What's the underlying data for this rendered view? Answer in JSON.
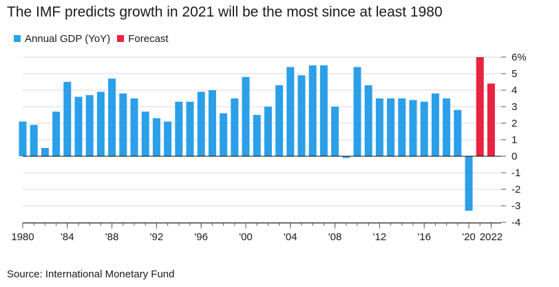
{
  "title": "The IMF predicts growth in 2021 will be the most since at least 1980",
  "source": "Source: International Monetary Fund",
  "colors": {
    "actual": "#2b9fe8",
    "forecast": "#e8233f",
    "grid": "#d9d9d9",
    "axis": "#000000"
  },
  "chart_data": {
    "type": "bar",
    "title": "The IMF predicts growth in 2021 will be the most since at least 1980",
    "xlabel": "",
    "ylabel": "",
    "ylim": [
      -4,
      6
    ],
    "y_ticks": [
      "-4",
      "-3",
      "-2",
      "-1",
      "0",
      "1",
      "2",
      "3",
      "4",
      "5",
      "6%"
    ],
    "x_ticks": [
      {
        "year": 1980,
        "label": "1980"
      },
      {
        "year": 1984,
        "label": "'84"
      },
      {
        "year": 1988,
        "label": "'88"
      },
      {
        "year": 1992,
        "label": "'92"
      },
      {
        "year": 1996,
        "label": "'96"
      },
      {
        "year": 2000,
        "label": "'00"
      },
      {
        "year": 2004,
        "label": "'04"
      },
      {
        "year": 2008,
        "label": "'08"
      },
      {
        "year": 2012,
        "label": "'12"
      },
      {
        "year": 2016,
        "label": "'16"
      },
      {
        "year": 2020,
        "label": "'20"
      },
      {
        "year": 2022,
        "label": "2022"
      }
    ],
    "legend_position": "top-left",
    "grid": true,
    "series": [
      {
        "name": "Annual GDP (YoY)",
        "color": "#2b9fe8",
        "x": [
          1980,
          1981,
          1982,
          1983,
          1984,
          1985,
          1986,
          1987,
          1988,
          1989,
          1990,
          1991,
          1992,
          1993,
          1994,
          1995,
          1996,
          1997,
          1998,
          1999,
          2000,
          2001,
          2002,
          2003,
          2004,
          2005,
          2006,
          2007,
          2008,
          2009,
          2010,
          2011,
          2012,
          2013,
          2014,
          2015,
          2016,
          2017,
          2018,
          2019,
          2020
        ],
        "values": [
          2.1,
          1.9,
          0.5,
          2.7,
          4.5,
          3.6,
          3.7,
          3.9,
          4.7,
          3.8,
          3.5,
          2.7,
          2.3,
          2.1,
          3.3,
          3.3,
          3.9,
          4.0,
          2.6,
          3.5,
          4.8,
          2.5,
          3.0,
          4.3,
          5.4,
          4.9,
          5.5,
          5.5,
          3.0,
          -0.1,
          5.4,
          4.3,
          3.5,
          3.5,
          3.5,
          3.4,
          3.3,
          3.8,
          3.5,
          2.8,
          -3.3
        ]
      },
      {
        "name": "Forecast",
        "color": "#e8233f",
        "x": [
          2021,
          2022
        ],
        "values": [
          6.0,
          4.4
        ]
      }
    ]
  }
}
